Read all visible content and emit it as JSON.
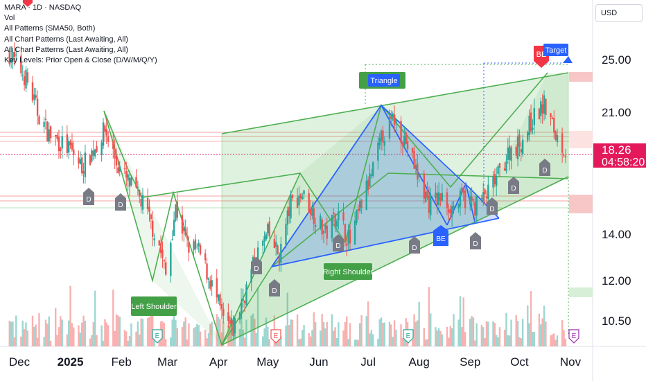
{
  "legend": {
    "title": "MARA · 1D · NASDAQ",
    "lines": [
      "Vol",
      "All Patterns (SMA50, Both)",
      "All Chart Patterns (Last Awaiting, All)",
      "All Chart Patterns (Last Awaiting, All)",
      "Key Levels: Prior Open & Close (D/W/M/Q/Y)"
    ]
  },
  "currency": "USD",
  "last_price": {
    "price": "18.26",
    "countdown": "04:58:20"
  },
  "colors": {
    "up": "#26a69a",
    "down": "#ef5350",
    "pattern_green": "#4caf50",
    "pattern_blue": "#2962ff",
    "label_green": "#43a047",
    "label_blue": "#2962ff",
    "price_badge": "#e3195b",
    "d_marker": "#787b86",
    "be_red": "#f23645"
  },
  "chart_data": {
    "type": "candlestick",
    "ticker": "MARA",
    "interval": "1D",
    "exchange": "NASDAQ",
    "currency": "USD",
    "y_ticks": [
      "25.00",
      "21.00",
      "18.26",
      "14.00",
      "12.00",
      "10.50"
    ],
    "x_ticks": [
      "Dec",
      "2025",
      "Feb",
      "Mar",
      "Apr",
      "May",
      "Jun",
      "Jul",
      "Aug",
      "Sep",
      "Oct",
      "Nov"
    ],
    "close_path": [
      {
        "date": "2024-11-25",
        "close": 25.5
      },
      {
        "date": "2024-12-05",
        "close": 23.5
      },
      {
        "date": "2024-12-12",
        "close": 21.0
      },
      {
        "date": "2024-12-19",
        "close": 19.5
      },
      {
        "date": "2025-01-01",
        "close": 18.5
      },
      {
        "date": "2025-01-08",
        "close": 17.5
      },
      {
        "date": "2025-01-15",
        "close": 18.5
      },
      {
        "date": "2025-01-22",
        "close": 19.8
      },
      {
        "date": "2025-01-30",
        "close": 17.5
      },
      {
        "date": "2025-02-06",
        "close": 16.5
      },
      {
        "date": "2025-02-14",
        "close": 15.5
      },
      {
        "date": "2025-02-24",
        "close": 13.5
      },
      {
        "date": "2025-02-28",
        "close": 12.2
      },
      {
        "date": "2025-03-06",
        "close": 15.3
      },
      {
        "date": "2025-03-13",
        "close": 13.5
      },
      {
        "date": "2025-03-20",
        "close": 13.2
      },
      {
        "date": "2025-03-27",
        "close": 12.0
      },
      {
        "date": "2025-04-04",
        "close": 10.5
      },
      {
        "date": "2025-04-10",
        "close": 10.2
      },
      {
        "date": "2025-04-17",
        "close": 11.5
      },
      {
        "date": "2025-04-24",
        "close": 13.0
      },
      {
        "date": "2025-05-01",
        "close": 14.0
      },
      {
        "date": "2025-05-08",
        "close": 13.0
      },
      {
        "date": "2025-05-15",
        "close": 15.5
      },
      {
        "date": "2025-05-22",
        "close": 16.0
      },
      {
        "date": "2025-05-29",
        "close": 15.0
      },
      {
        "date": "2025-06-05",
        "close": 14.0
      },
      {
        "date": "2025-06-12",
        "close": 15.0
      },
      {
        "date": "2025-06-20",
        "close": 13.6
      },
      {
        "date": "2025-06-27",
        "close": 15.5
      },
      {
        "date": "2025-07-03",
        "close": 17.0
      },
      {
        "date": "2025-07-10",
        "close": 19.5
      },
      {
        "date": "2025-07-17",
        "close": 20.5
      },
      {
        "date": "2025-07-24",
        "close": 19.0
      },
      {
        "date": "2025-07-31",
        "close": 17.0
      },
      {
        "date": "2025-08-07",
        "close": 15.5
      },
      {
        "date": "2025-08-14",
        "close": 15.8
      },
      {
        "date": "2025-08-21",
        "close": 15.3
      },
      {
        "date": "2025-08-28",
        "close": 15.8
      },
      {
        "date": "2025-09-04",
        "close": 15.4
      },
      {
        "date": "2025-09-11",
        "close": 15.9
      },
      {
        "date": "2025-09-18",
        "close": 17.0
      },
      {
        "date": "2025-09-25",
        "close": 18.5
      },
      {
        "date": "2025-10-02",
        "close": 19.0
      },
      {
        "date": "2025-10-09",
        "close": 20.5
      },
      {
        "date": "2025-10-16",
        "close": 21.5
      },
      {
        "date": "2025-10-23",
        "close": 19.5
      },
      {
        "date": "2025-10-30",
        "close": 18.26
      }
    ],
    "last_close": 18.26,
    "annotations": [
      "Left Shoulder",
      "Right Shoulder",
      "Triangle",
      "Target",
      "BE",
      "BE",
      "D",
      "E"
    ]
  }
}
